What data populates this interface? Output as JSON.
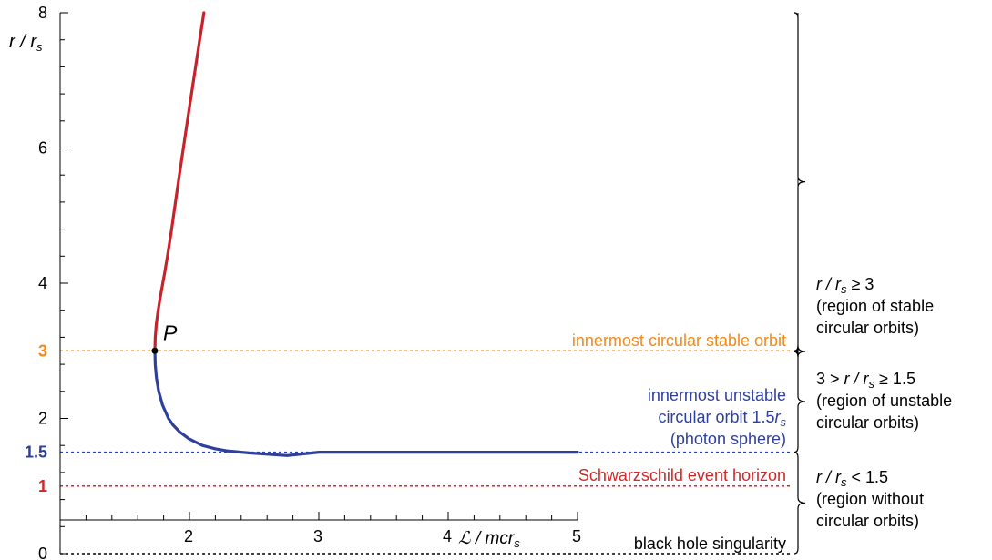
{
  "chart_data": {
    "type": "line",
    "xlim": [
      1,
      5
    ],
    "ylim": [
      0,
      8
    ],
    "y_axis_label": "r / r_s",
    "x_axis_label": "ℒ / mcr_s",
    "x_ticks": [
      "2",
      "3",
      "4",
      "5"
    ],
    "y_ticks": [
      "2",
      "4",
      "6",
      "8"
    ],
    "special_y_ticks": [
      {
        "value": 3,
        "label": "3",
        "color": "#f08a1c"
      },
      {
        "value": 1.5,
        "label": "1.5",
        "color": "#2e3f9c"
      },
      {
        "value": 1,
        "label": "1",
        "color": "#cc2a2a"
      },
      {
        "value": 0,
        "label": "0",
        "color": "#000000"
      }
    ],
    "series": [
      {
        "key": "stable",
        "color": "#c8222b",
        "points": [
          [
            1.7321,
            3.0
          ],
          [
            1.7352,
            3.2
          ],
          [
            1.7439,
            3.4
          ],
          [
            1.7574,
            3.6
          ],
          [
            1.7748,
            3.8
          ],
          [
            1.7889,
            3.95
          ],
          [
            1.8074,
            4.15
          ],
          [
            1.834,
            4.45
          ],
          [
            1.8622,
            4.8
          ],
          [
            1.8917,
            5.2
          ],
          [
            1.9219,
            5.6
          ],
          [
            1.9528,
            6.0
          ],
          [
            1.984,
            6.4
          ],
          [
            2.0155,
            6.8
          ],
          [
            2.0473,
            7.2
          ],
          [
            2.0792,
            7.6
          ],
          [
            2.1032,
            7.9
          ],
          [
            2.1112,
            8.0
          ]
        ]
      },
      {
        "key": "unstable",
        "color": "#2e3f9c",
        "points": [
          [
            1.7321,
            3.0
          ],
          [
            1.7352,
            2.8
          ],
          [
            1.7444,
            2.6
          ],
          [
            1.7618,
            2.4
          ],
          [
            1.7906,
            2.2
          ],
          [
            1.8371,
            2.0
          ],
          [
            1.8741,
            1.9
          ],
          [
            1.9245,
            1.8
          ],
          [
            1.9953,
            1.7
          ],
          [
            2.1002,
            1.6
          ],
          [
            2.2011,
            1.55
          ],
          [
            2.2865,
            1.52
          ],
          [
            2.4597,
            1.49
          ],
          [
            2.7557,
            1.45
          ],
          [
            3.0,
            1.5
          ],
          [
            3.5,
            1.5
          ],
          [
            4.0,
            1.5
          ],
          [
            4.5,
            1.5
          ],
          [
            5.0,
            1.5
          ]
        ]
      }
    ],
    "point": {
      "label": "P",
      "x": 1.7321,
      "y": 3.0
    },
    "hlines": [
      {
        "y": 3,
        "color": "#f08a1c",
        "label": "innermost circular stable orbit"
      },
      {
        "y": 1.5,
        "color": "#2e3f9c",
        "label_lines": [
          "innermost unstable",
          "circular orbit 1.5r_s",
          "(photon sphere)"
        ]
      },
      {
        "y": 1,
        "color": "#cc2a2a",
        "label": "Schwarzschild event horizon"
      },
      {
        "y": 0,
        "color": "#000000",
        "label": "black hole singularity"
      }
    ],
    "regions": [
      {
        "lines": [
          "r / r_s ≥ 3",
          "(region of stable",
          "circular orbits)"
        ]
      },
      {
        "lines": [
          "3 > r / r_s ≥ 1.5",
          "(region of unstable",
          "circular orbits)"
        ]
      },
      {
        "lines": [
          "r / r_s < 1.5",
          "(region without",
          "circular orbits)"
        ]
      }
    ]
  }
}
